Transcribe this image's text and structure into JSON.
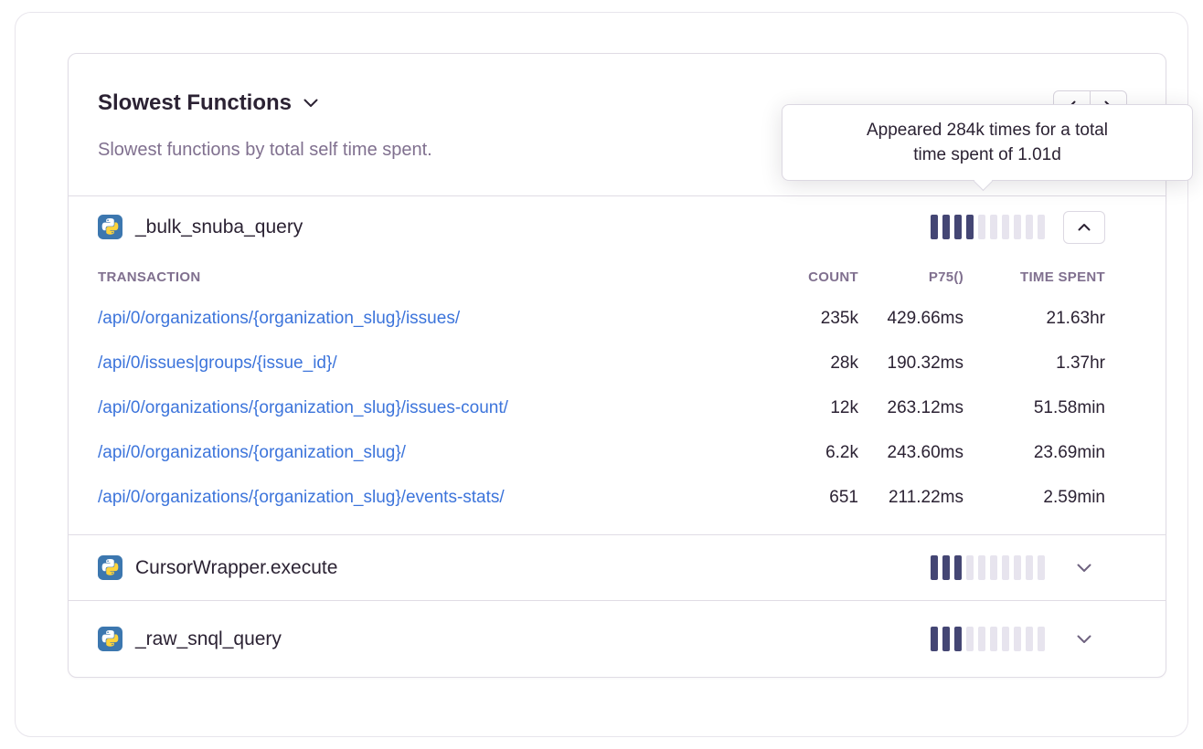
{
  "panel": {
    "title": "Slowest Functions",
    "subtitle": "Slowest functions by total self time spent.",
    "tooltip": {
      "lines": [
        "Appeared 284k times for a total",
        "time spent of 1.01d"
      ]
    },
    "functions": [
      {
        "name": "_bulk_snuba_query",
        "platform": "python",
        "bars_total": 10,
        "bars_filled": 4,
        "expanded": true
      },
      {
        "name": "CursorWrapper.execute",
        "platform": "python",
        "bars_total": 10,
        "bars_filled": 3,
        "expanded": false
      },
      {
        "name": "_raw_snql_query",
        "platform": "python",
        "bars_total": 10,
        "bars_filled": 3,
        "expanded": false
      }
    ],
    "table": {
      "headers": {
        "transaction": "TRANSACTION",
        "count": "COUNT",
        "p75": "P75()",
        "time_spent": "TIME SPENT"
      },
      "rows": [
        {
          "transaction": "/api/0/organizations/{organization_slug}/issues/",
          "count": "235k",
          "p75": "429.66ms",
          "time_spent": "21.63hr"
        },
        {
          "transaction": "/api/0/issues|groups/{issue_id}/",
          "count": "28k",
          "p75": "190.32ms",
          "time_spent": "1.37hr"
        },
        {
          "transaction": "/api/0/organizations/{organization_slug}/issues-count/",
          "count": "12k",
          "p75": "263.12ms",
          "time_spent": "51.58min"
        },
        {
          "transaction": "/api/0/organizations/{organization_slug}/",
          "count": "6.2k",
          "p75": "243.60ms",
          "time_spent": "23.69min"
        },
        {
          "transaction": "/api/0/organizations/{organization_slug}/events-stats/",
          "count": "651",
          "p75": "211.22ms",
          "time_spent": "2.59min"
        }
      ]
    }
  },
  "colors": {
    "accent_blue": "#3c74db",
    "bar_filled": "#444674",
    "bar_empty": "#e7e4ee",
    "title_text": "#2b2233",
    "muted_text": "#80708f",
    "border": "#e0dce5"
  }
}
